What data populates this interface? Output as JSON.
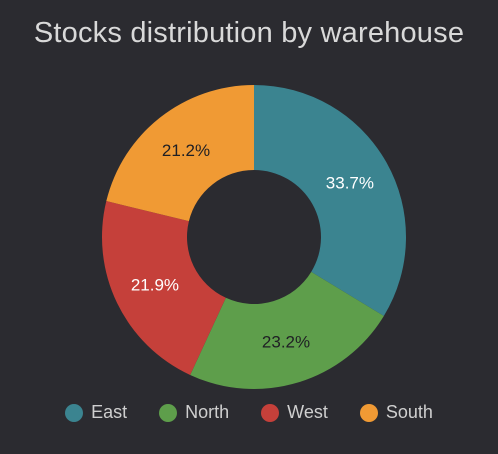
{
  "chart_data": {
    "type": "pie",
    "title": "Stocks distribution by warehouse",
    "donut": true,
    "legend_position": "bottom",
    "slices": [
      {
        "name": "East",
        "value": 33.7,
        "label": "33.7%",
        "color": "#3b8490",
        "label_color": "#ffffff"
      },
      {
        "name": "North",
        "value": 23.2,
        "label": "23.2%",
        "color": "#5e9e4b",
        "label_color": "#1f1f24"
      },
      {
        "name": "West",
        "value": 21.9,
        "label": "21.9%",
        "color": "#c5403a",
        "label_color": "#ffffff"
      },
      {
        "name": "South",
        "value": 21.2,
        "label": "21.2%",
        "color": "#f09a34",
        "label_color": "#1f1f24"
      }
    ]
  },
  "colors": {
    "background": "#2b2b30",
    "title": "#d9d9d9",
    "legend_text": "#cfcfcf"
  }
}
